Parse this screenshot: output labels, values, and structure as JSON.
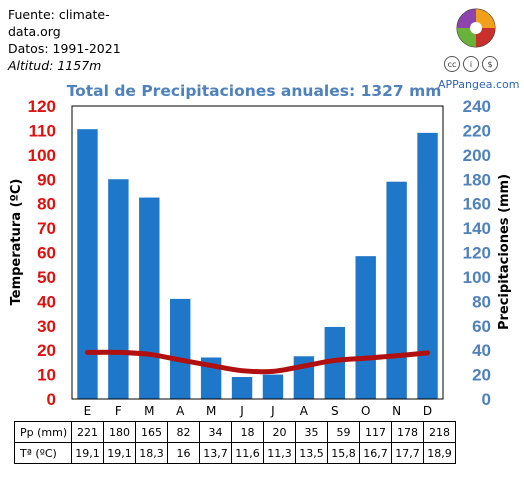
{
  "source": {
    "line1": "Fuente: climate-",
    "line2": "data.org",
    "period": "Datos: 1991-2021",
    "altitude": "Altitud: 1157m"
  },
  "brand": {
    "name": "APPangea.com",
    "logo_icon": "puzzle-globe-icon",
    "license_icons": [
      "cc-icon",
      "by-icon",
      "nc-icon"
    ]
  },
  "chart_data": {
    "type": "bar",
    "title": "Total de Precipitaciones anuales: 1327 mm",
    "categories": [
      "E",
      "F",
      "M",
      "A",
      "M",
      "J",
      "J",
      "A",
      "S",
      "O",
      "N",
      "D"
    ],
    "series": [
      {
        "name": "Pp (mm)",
        "kind": "bar",
        "axis": "right",
        "color": "#1f77c9",
        "values": [
          221,
          180,
          165,
          82,
          34,
          18,
          20,
          35,
          59,
          117,
          178,
          218
        ]
      },
      {
        "name": "Tª (ºC)",
        "kind": "line",
        "axis": "left",
        "color": "#b01010",
        "values": [
          19.1,
          19.1,
          18.3,
          16,
          13.7,
          11.6,
          11.3,
          13.5,
          15.8,
          16.7,
          17.7,
          18.9
        ]
      }
    ],
    "ylabel_left": "Temperatura (ºC)",
    "ylabel_right": "Precipitaciones (mm)",
    "ylim_left": [
      0,
      120
    ],
    "ylim_right": [
      0,
      240
    ],
    "yticks_left": [
      "0",
      "10",
      "20",
      "30",
      "40",
      "50",
      "60",
      "70",
      "80",
      "90",
      "100",
      "110",
      "120"
    ],
    "yticks_right": [
      "0",
      "20",
      "40",
      "60",
      "80",
      "100",
      "120",
      "140",
      "160",
      "180",
      "200",
      "220",
      "240"
    ],
    "left_axis_color": "#e01010",
    "right_axis_color": "#4f81bd",
    "title_color": "#4f81bd",
    "grid": false
  },
  "table": {
    "precip_label": "Pp (mm)",
    "precip_values": [
      "221",
      "180",
      "165",
      "82",
      "34",
      "18",
      "20",
      "35",
      "59",
      "117",
      "178",
      "218"
    ],
    "temp_label": "Tª (ºC)",
    "temp_values": [
      "19,1",
      "19,1",
      "18,3",
      "16",
      "13,7",
      "11,6",
      "11,3",
      "13,5",
      "15,8",
      "16,7",
      "17,7",
      "18,9"
    ]
  }
}
